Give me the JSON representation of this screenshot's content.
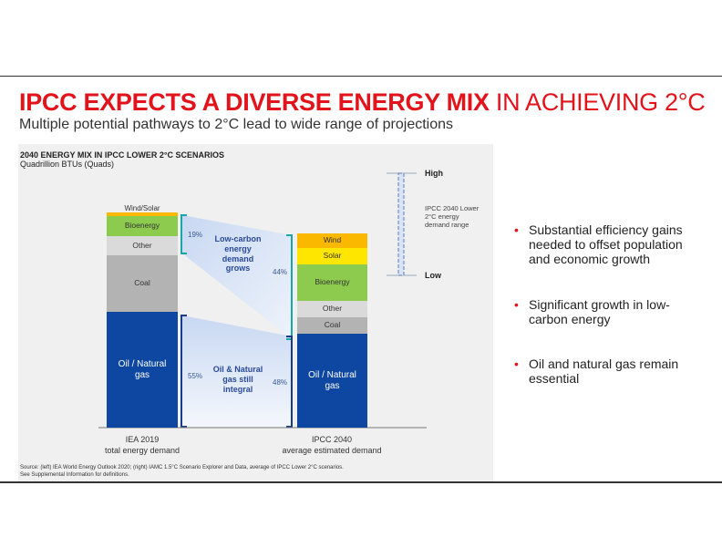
{
  "slide": {
    "title_bold": "IPCC EXPECTS A DIVERSE ENERGY MIX",
    "title_light": " IN ACHIEVING 2°C",
    "subtitle": "Multiple potential pathways to 2°C lead to wide range of projections",
    "bullets": [
      "Substantial efficiency gains needed to offset population and economic growth",
      "Significant growth in low-carbon energy",
      "Oil and natural gas remain essential"
    ],
    "source_line1": "Source: (left) IEA World Energy Outlook 2020; (right) IAMC 1.5°C Scenario Explorer and Data, average of IPCC Lower 2°C scenarios.",
    "source_line2": "See Supplemental Information for definitions."
  },
  "chart_data": {
    "type": "bar",
    "title": "2040 ENERGY MIX IN IPCC LOWER 2°C SCENARIOS",
    "ylabel": "Quadrillion BTUs (Quads)",
    "categories": [
      "IEA 2019 total energy demand",
      "IPCC 2040 average estimated demand"
    ],
    "category_labels": [
      [
        "IEA 2019",
        "total energy demand"
      ],
      [
        "IPCC 2040",
        "average estimated demand"
      ]
    ],
    "left_segments": [
      "Wind/Solar",
      "Bioenergy",
      "Other",
      "Coal",
      "Oil / Natural gas"
    ],
    "right_segments": [
      "Wind",
      "Solar",
      "Bioenergy",
      "Other",
      "Coal",
      "Oil / Natural gas"
    ],
    "low_carbon_share": {
      "left": "19%",
      "right": "44%",
      "label": "Low-carbon energy demand grows"
    },
    "oil_gas_share": {
      "left": "55%",
      "right": "48%",
      "label": "Oil & Natural gas still integral"
    },
    "range": {
      "high": "High",
      "low": "Low",
      "label": "IPCC 2040 Lower 2°C energy demand range"
    },
    "colors": {
      "oil": "#0d47a1",
      "coal": "#b3b3b3",
      "other": "#dadada",
      "bio": "#8dcb4f",
      "solar": "#ffe600",
      "wind": "#fbb800",
      "teal": "#1aa6a6",
      "navy": "#1a3a8a"
    }
  }
}
